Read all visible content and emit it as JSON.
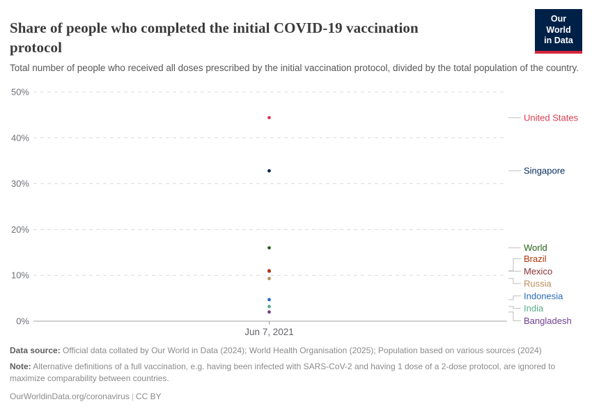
{
  "header": {
    "title": "Share of people who completed the initial COVID-19 vaccination protocol",
    "subtitle": "Total number of people who received all doses prescribed by the initial vaccination protocol, divided by the total population of the country.",
    "logo": {
      "line1": "Our World",
      "line2": "in Data",
      "bg_color": "#002147",
      "accent_color": "#d7263d"
    }
  },
  "chart_data": {
    "type": "scatter",
    "title": "Share of people who completed the initial COVID-19 vaccination protocol",
    "x": [
      "Jun 7, 2021"
    ],
    "x_tick_label": "Jun 7, 2021",
    "ylabel": "",
    "ylim": [
      0,
      50
    ],
    "y_ticks": [
      0,
      10,
      20,
      30,
      40,
      50
    ],
    "y_tick_suffix": "%",
    "grid": true,
    "legend_position": "right-labels",
    "series": [
      {
        "name": "United States",
        "values": [
          44.4
        ],
        "label_at": 44.4,
        "color": "#d73c50"
      },
      {
        "name": "Singapore",
        "values": [
          32.8
        ],
        "label_at": 32.8,
        "color": "#00295b"
      },
      {
        "name": "World",
        "values": [
          16.0
        ],
        "label_at": 16.0,
        "color": "#286419"
      },
      {
        "name": "Brazil",
        "values": [
          11.0
        ],
        "label_at": 13.6,
        "color": "#b13507"
      },
      {
        "name": "Mexico",
        "values": [
          10.9
        ],
        "label_at": 10.9,
        "color": "#883039"
      },
      {
        "name": "Russia",
        "values": [
          9.3
        ],
        "label_at": 8.2,
        "color": "#bc8e5a"
      },
      {
        "name": "Indonesia",
        "values": [
          4.7
        ],
        "label_at": 5.5,
        "color": "#286bbb"
      },
      {
        "name": "India",
        "values": [
          3.2
        ],
        "label_at": 2.8,
        "color": "#58ac8c"
      },
      {
        "name": "Bangladesh",
        "values": [
          2.0
        ],
        "label_at": 0.1,
        "color": "#6d3e91"
      }
    ],
    "colors": {
      "grid": "#dadada",
      "baseline": "#c0c0c0",
      "tick_text": "#6f7177",
      "x_tick": "#a0a0a0",
      "connector": "#bdbdbd"
    }
  },
  "footer": {
    "data_source_label": "Data source:",
    "data_source_text": " Official data collated by Our World in Data (2024); World Health Organisation (2025); Population based on various sources (2024)",
    "note_label": "Note:",
    "note_text": " Alternative definitions of a full vaccination, e.g. having been infected with SARS-CoV-2 and having 1 dose of a 2-dose protocol, are ignored to maximize comparability between countries.",
    "citation_link": "OurWorldinData.org/coronavirus",
    "citation_divider": "|",
    "citation_license": "CC BY"
  }
}
